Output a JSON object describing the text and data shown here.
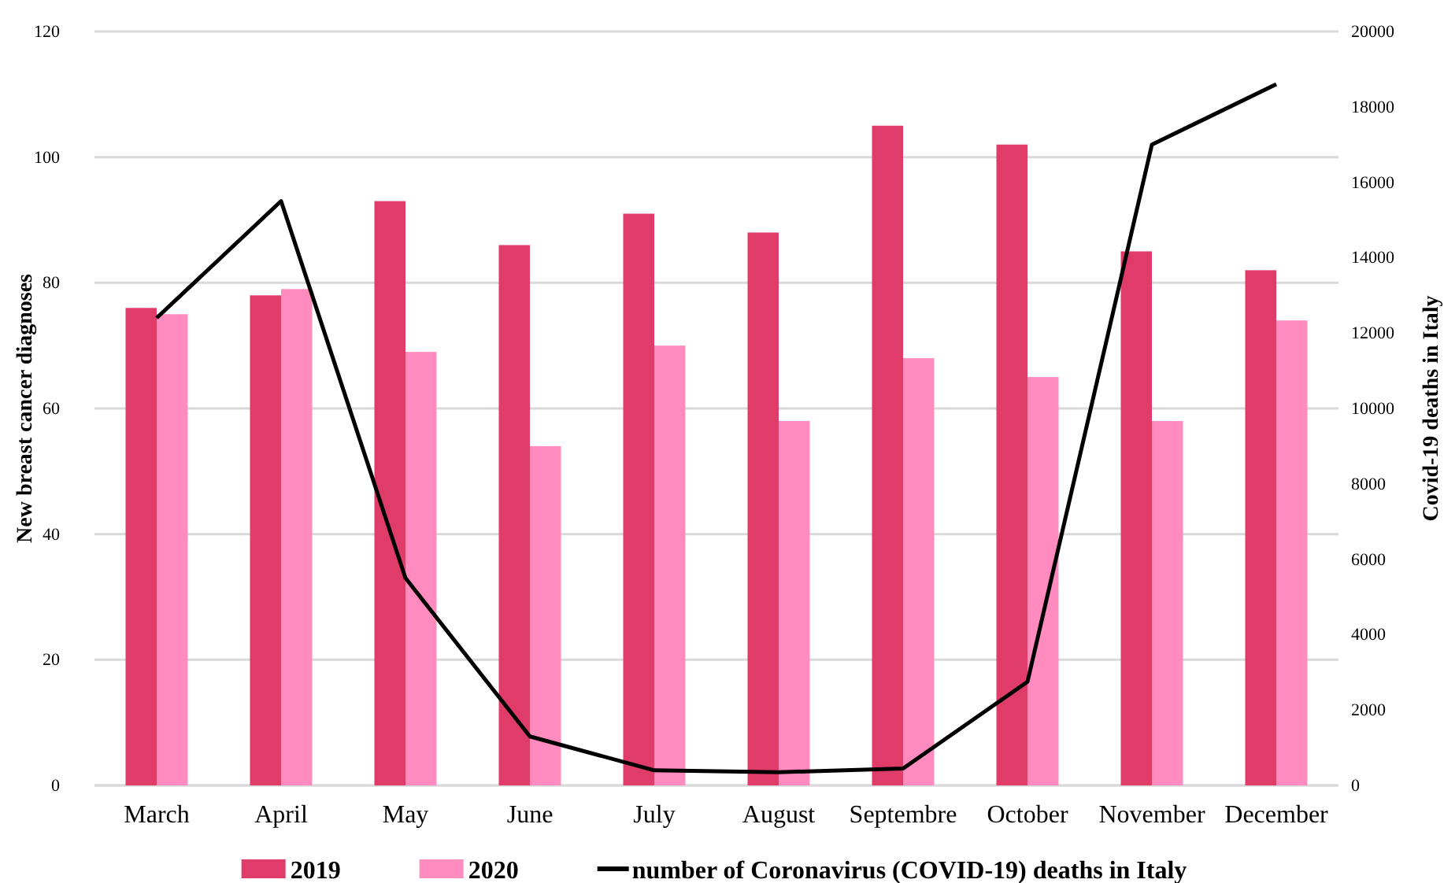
{
  "chart_data": {
    "type": "bar",
    "xlabel": null,
    "ylabel": "New breast cancer diagnoses",
    "y2label": "Covid-19 deaths in Italy",
    "categories": [
      "March",
      "April",
      "May",
      "June",
      "July",
      "August",
      "Septembre",
      "October",
      "November",
      "December"
    ],
    "series": [
      {
        "name": "2019",
        "color": "#e03c6a",
        "values": [
          76,
          78,
          93,
          86,
          91,
          88,
          105,
          102,
          85,
          82
        ]
      },
      {
        "name": "2020",
        "color": "#ff8bbf",
        "values": [
          75,
          79,
          69,
          54,
          70,
          58,
          68,
          65,
          58,
          74
        ]
      },
      {
        "name": "number of Coronavirus (COVID-19) deaths in Italy",
        "type": "line",
        "axis": "y2",
        "color": "#000000",
        "values": [
          12400,
          15500,
          5500,
          1300,
          400,
          350,
          450,
          2750,
          17000,
          18600
        ]
      }
    ],
    "ylim": [
      0,
      120
    ],
    "yticks": [
      0,
      20,
      40,
      60,
      80,
      100,
      120
    ],
    "y2lim": [
      0,
      20000
    ],
    "y2ticks": [
      0,
      2000,
      4000,
      6000,
      8000,
      10000,
      12000,
      14000,
      16000,
      18000,
      20000
    ],
    "grid": "y",
    "legend": "bottom"
  }
}
